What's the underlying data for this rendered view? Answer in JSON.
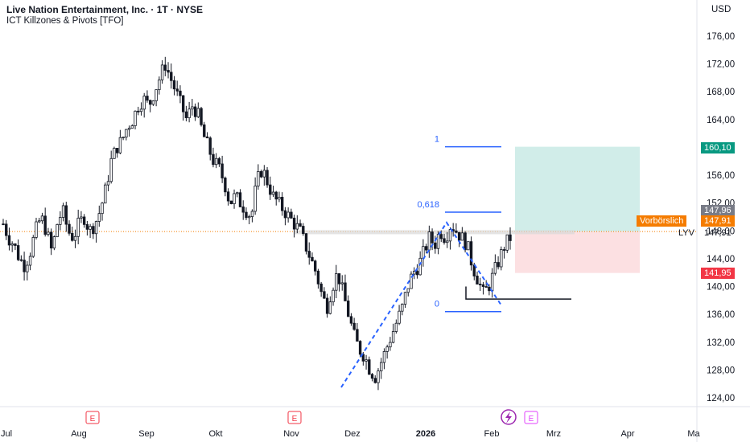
{
  "header": {
    "title": "Live Nation Entertainment, Inc. · 1T · NYSE",
    "indicator": "ICT Killzones & Pivots [TFO]",
    "currency": "USD"
  },
  "price_tags": {
    "target": "160,10",
    "gray": "147,96",
    "premarket_label": "Vorbörslich",
    "premarket_value": "147,91",
    "ticker": "LYV",
    "last": "147,91",
    "stop": "141,95"
  },
  "colors": {
    "up": "#ffffff",
    "down": "#131722",
    "fib": "#2962ff",
    "target_zone": "#d1ede9",
    "stop_zone": "#fce0e2",
    "target_tag": "#089981",
    "stop_tag": "#f23645",
    "premarket_tag": "#f57c00",
    "gray_tag": "#787b86"
  },
  "fib": {
    "levels": [
      "1",
      "0,618",
      "0"
    ]
  },
  "chart_data": {
    "type": "candlestick",
    "ylim": [
      123,
      178
    ],
    "y_ticks": [
      "176,00",
      "172,00",
      "168,00",
      "164,00",
      "160,00",
      "156,00",
      "152,00",
      "148,00",
      "144,00",
      "140,00",
      "136,00",
      "132,00",
      "128,00",
      "124,00"
    ],
    "x_ticks": [
      "Jul",
      "Aug",
      "Sep",
      "Okt",
      "Nov",
      "Dez",
      "2026",
      "Feb",
      "Mrz",
      "Apr",
      "Ma"
    ],
    "earnings_markers": [
      "E",
      "E",
      "E"
    ],
    "close_path": [
      149,
      147,
      146,
      144,
      143,
      145,
      148,
      150,
      148,
      145,
      149,
      151,
      148,
      147,
      149,
      150,
      148,
      149,
      151,
      154,
      158,
      160,
      161,
      163,
      164,
      166,
      167,
      166,
      168,
      170,
      172,
      170,
      168,
      166,
      164,
      166,
      165,
      162,
      160,
      158,
      157,
      155,
      152,
      153,
      152,
      151,
      150,
      155,
      157,
      155,
      153,
      152,
      151,
      150,
      149,
      148,
      146,
      144,
      142,
      139,
      137,
      140,
      142,
      139,
      136,
      133,
      131,
      130,
      128,
      127,
      129,
      131,
      133,
      135,
      137,
      140,
      142,
      143,
      145,
      147,
      146,
      148,
      147,
      149,
      148,
      147,
      146,
      143,
      141,
      139,
      140,
      142,
      144,
      146,
      147
    ]
  }
}
